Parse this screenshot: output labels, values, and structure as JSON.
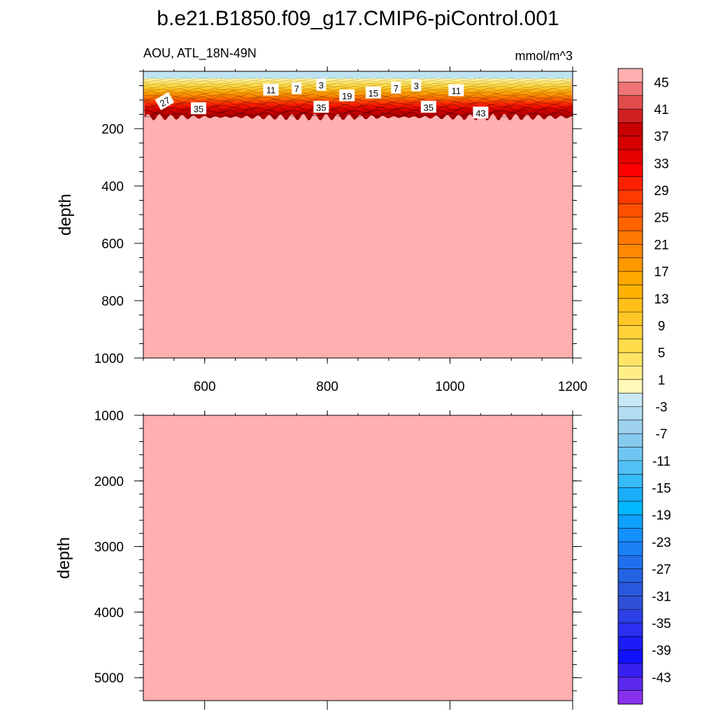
{
  "title": "b.e21.B1850.f09_g17.CMIP6-piControl.001",
  "colors": {
    "fill_deep": "#feafaf",
    "surface": "#bde3f2",
    "background": "#ffffff"
  },
  "chart_data": [
    {
      "type": "heatmap",
      "name": "upper",
      "left_label": "AOU, ATL_18N-49N",
      "right_label": "mmol/m^3",
      "ylabel": "depth",
      "xlim": [
        500,
        1200
      ],
      "ylim": [
        1000,
        0
      ],
      "x_ticks": [
        600,
        800,
        1000,
        1200
      ],
      "y_ticks": [
        200,
        400,
        600,
        800,
        1000
      ],
      "surface_layer_depth": [
        0,
        25
      ],
      "gradient_layer_depth": [
        25,
        160
      ],
      "contour_labels": [
        {
          "text": "27",
          "x": 535,
          "depth": 105
        },
        {
          "text": "35",
          "x": 590,
          "depth": 130
        },
        {
          "text": "11",
          "x": 708,
          "depth": 65
        },
        {
          "text": "7",
          "x": 750,
          "depth": 60
        },
        {
          "text": "3",
          "x": 790,
          "depth": 48
        },
        {
          "text": "35",
          "x": 790,
          "depth": 125
        },
        {
          "text": "19",
          "x": 832,
          "depth": 85
        },
        {
          "text": "15",
          "x": 875,
          "depth": 75
        },
        {
          "text": "7",
          "x": 912,
          "depth": 58
        },
        {
          "text": "3",
          "x": 945,
          "depth": 50
        },
        {
          "text": "35",
          "x": 965,
          "depth": 125
        },
        {
          "text": "11",
          "x": 1010,
          "depth": 67
        },
        {
          "text": "43",
          "x": 1050,
          "depth": 145
        }
      ]
    },
    {
      "type": "heatmap",
      "name": "lower",
      "ylabel": "depth",
      "xlim": [
        500,
        1200
      ],
      "ylim": [
        5350,
        1000
      ],
      "y_ticks": [
        1000,
        2000,
        3000,
        4000,
        5000
      ]
    }
  ],
  "colorbar": {
    "labels": [
      "45",
      "41",
      "37",
      "33",
      "29",
      "25",
      "21",
      "17",
      "13",
      "9",
      "5",
      "1",
      "-3",
      "-7",
      "-11",
      "-15",
      "-19",
      "-23",
      "-27",
      "-31",
      "-35",
      "-39",
      "-43"
    ],
    "colors": [
      "#feafaf",
      "#ee7575",
      "#e04c4c",
      "#d02020",
      "#c80000",
      "#d60000",
      "#e80000",
      "#ff0000",
      "#ff2000",
      "#ff3b00",
      "#ff5000",
      "#ff6400",
      "#ff7800",
      "#ff8800",
      "#ff9900",
      "#ffa800",
      "#ffb300",
      "#ffbe18",
      "#ffc828",
      "#ffd23a",
      "#ffdc4a",
      "#ffe566",
      "#ffee88",
      "#fff8b8",
      "#c8e8f4",
      "#b2dcf0",
      "#9ed2ee",
      "#86caee",
      "#6ec6f2",
      "#52c0f6",
      "#36baf8",
      "#1aaef8",
      "#00b8ff",
      "#10a0ff",
      "#1490ff",
      "#1a80f6",
      "#2070ee",
      "#2464e4",
      "#2a58dc",
      "#3050d8",
      "#2c40e4",
      "#2a30ee",
      "#1c1cf8",
      "#1010ff",
      "#3820f2",
      "#5a28ee",
      "#8830ee"
    ]
  }
}
